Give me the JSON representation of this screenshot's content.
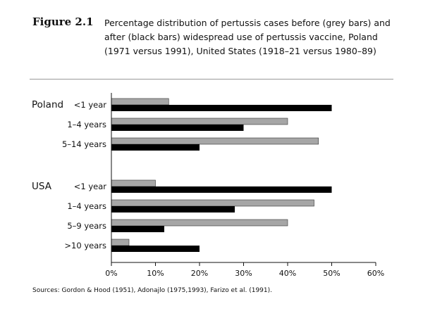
{
  "figure": {
    "label": "Figure 2.1",
    "caption": "Percentage distribution of pertussis cases before (grey bars) and after (black bars) widespread use of pertussis vaccine, Poland (1971 versus 1991), United States (1918–21 versus 1980–89)"
  },
  "sources": "Sources: Gordon & Hood (1951), Adonajlo (1975,1993), Farizo et al. (1991).",
  "colors": {
    "before": "#a6a6a6",
    "after": "#000000",
    "axis": "#111111",
    "rule": "#9a9a9a"
  },
  "chart_data": {
    "type": "bar",
    "orientation": "horizontal",
    "xlim": [
      0,
      60
    ],
    "xticks": [
      "0%",
      "10%",
      "20%",
      "30%",
      "40%",
      "50%",
      "60%"
    ],
    "grid": false,
    "legend": "none",
    "groups": [
      {
        "name": "Poland",
        "categories": [
          "<1 year",
          "1–4 years",
          "5–14 years"
        ],
        "before": [
          13,
          40,
          47
        ],
        "after": [
          50,
          30,
          20
        ]
      },
      {
        "name": "USA",
        "categories": [
          "<1 year",
          "1–4 years",
          "5–9 years",
          ">10 years"
        ],
        "before": [
          10,
          46,
          40,
          4
        ],
        "after": [
          50,
          28,
          12,
          20
        ]
      }
    ]
  }
}
